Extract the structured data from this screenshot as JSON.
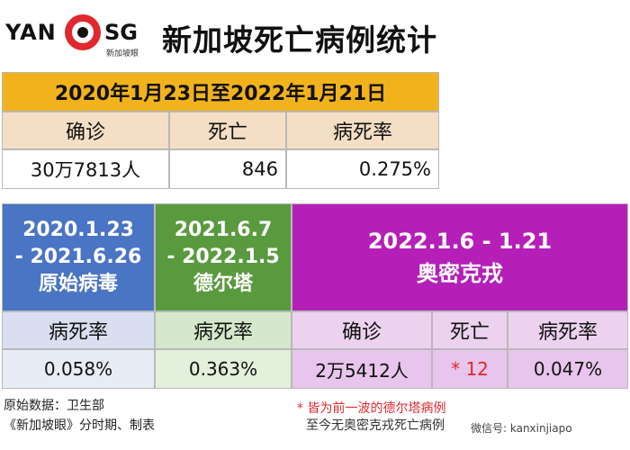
{
  "logo": {
    "left": "YAN",
    "right": "SG",
    "sub": "新加坡眼"
  },
  "title": "新加坡死亡病例统计",
  "summary": {
    "date_range": "2020年1月23日至2022年1月21日",
    "headers": [
      "确诊",
      "死亡",
      "病死率"
    ],
    "values": [
      "30万7813人",
      "846",
      "0.275%"
    ]
  },
  "periods": {
    "original": {
      "line1": "2020.1.23",
      "line2": "- 2021.6.26",
      "line3": "原始病毒",
      "rate_label": "病死率",
      "rate": "0.058%"
    },
    "delta": {
      "line1": "2021.6.7",
      "line2": "- 2022.1.5",
      "line3": "德尔塔",
      "rate_label": "病死率",
      "rate": "0.363%"
    },
    "omicron": {
      "line1": "2022.1.6 - 1.21",
      "line2": "奥密克戎",
      "headers": [
        "确诊",
        "死亡",
        "病死率"
      ],
      "cases": "2万5412人",
      "deaths": "* 12",
      "rate": "0.047%"
    }
  },
  "footer": {
    "source": "原始数据：卫生部",
    "made_by": "《新加坡眼》分时期、制表",
    "note_line1": "* 皆为前一波的德尔塔病例",
    "note_line2": "至今无奥密克戎死亡病例",
    "wechat": "微信号: kanxinjiapo"
  },
  "colors": {
    "gold": "#f2b21b",
    "blue": "#4a74c4",
    "green": "#5a9a3f",
    "purple": "#b51fb8",
    "red": "#e0282e"
  }
}
